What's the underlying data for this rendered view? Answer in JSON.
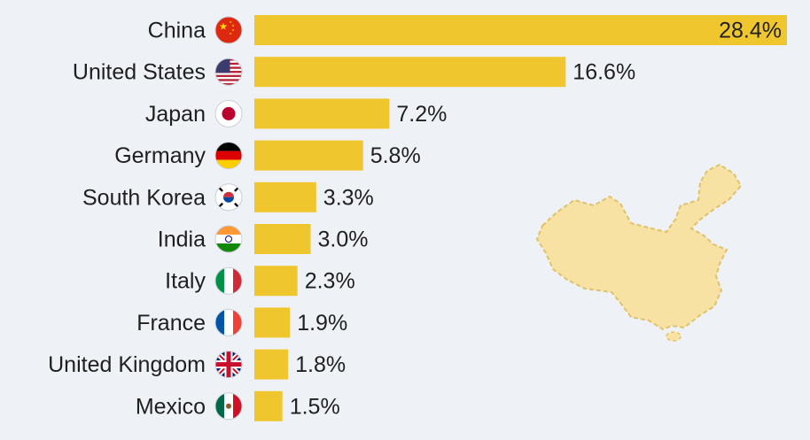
{
  "chart_data": {
    "type": "bar",
    "orientation": "horizontal",
    "categories": [
      "China",
      "United States",
      "Japan",
      "Germany",
      "South Korea",
      "India",
      "Italy",
      "France",
      "United Kingdom",
      "Mexico"
    ],
    "values": [
      28.4,
      16.6,
      7.2,
      5.8,
      3.3,
      3.0,
      2.3,
      1.9,
      1.8,
      1.5
    ],
    "value_labels": [
      "28.4%",
      "16.6%",
      "7.2%",
      "5.8%",
      "3.3%",
      "3.0%",
      "2.3%",
      "1.9%",
      "1.8%",
      "1.5%"
    ],
    "flag_icons": [
      "china-flag-icon",
      "usa-flag-icon",
      "japan-flag-icon",
      "germany-flag-icon",
      "south-korea-flag-icon",
      "india-flag-icon",
      "italy-flag-icon",
      "france-flag-icon",
      "uk-flag-icon",
      "mexico-flag-icon"
    ],
    "xlim": [
      0,
      28.4
    ],
    "grid": false,
    "legend": "none",
    "bar_color": "#f0c62e",
    "background_color": "#eef2f6",
    "decoration": "china-map-silhouette"
  }
}
